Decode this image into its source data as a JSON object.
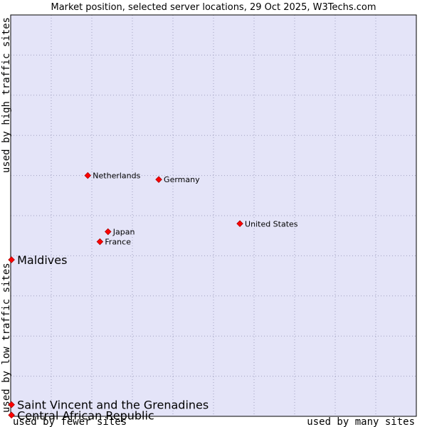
{
  "chart_data": {
    "type": "scatter",
    "title": "Market position, selected server locations, 29 Oct 2025, W3Techs.com",
    "xlabel_left": "used by fewer sites",
    "xlabel_right": "used by many sites",
    "ylabel_bottom": "used by low traffic sites",
    "ylabel_top": "used by high traffic sites",
    "xlim": [
      0,
      100
    ],
    "ylim": [
      0,
      100
    ],
    "grid": true,
    "colors": {
      "plot_background": "#e4e4f8",
      "grid": "#a0a0c0",
      "border": "#000000",
      "point": "#ff0000",
      "point_edge": "#aa0000"
    },
    "points": [
      {
        "label": "Netherlands",
        "x": 19.0,
        "y": 60.0,
        "size": "small"
      },
      {
        "label": "Germany",
        "x": 36.5,
        "y": 59.0,
        "size": "small"
      },
      {
        "label": "United States",
        "x": 56.5,
        "y": 48.0,
        "size": "small"
      },
      {
        "label": "Japan",
        "x": 24.0,
        "y": 46.0,
        "size": "small"
      },
      {
        "label": "France",
        "x": 22.0,
        "y": 43.5,
        "size": "small"
      },
      {
        "label": "Maldives",
        "x": 0.2,
        "y": 39.0,
        "size": "large"
      },
      {
        "label": "Saint Vincent and the Grenadines",
        "x": 0.2,
        "y": 2.9,
        "size": "large"
      },
      {
        "label": "Central African Republic",
        "x": 0.2,
        "y": 0.3,
        "size": "large"
      }
    ]
  }
}
